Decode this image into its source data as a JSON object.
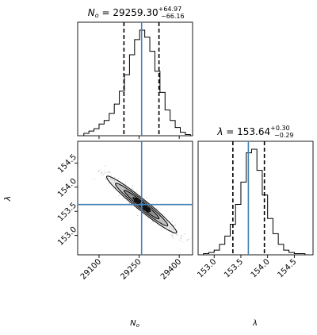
{
  "chart_data": [
    {
      "type": "histogram",
      "panel": "marginal-N0",
      "title": {
        "symbol": "N_o",
        "center": "29259.30",
        "plus": "+64.97",
        "minus": "−66.16"
      },
      "bins_x": [
        29043,
        29062,
        29081,
        29100,
        29119,
        29138,
        29157,
        29176,
        29195,
        29214,
        29233,
        29252,
        29271,
        29290,
        29309,
        29328,
        29347,
        29366,
        29385,
        29404,
        29423,
        29442
      ],
      "counts": [
        2,
        4,
        6,
        10,
        13,
        19,
        27,
        38,
        52,
        69,
        82,
        90,
        84,
        72,
        55,
        37,
        22,
        13,
        7,
        3,
        1
      ],
      "quantiles": [
        29193.14,
        29324.27
      ],
      "truth": 29259.3,
      "xlim": [
        29020,
        29450
      ],
      "line_color": "#000000",
      "truth_color": "#4682b4"
    },
    {
      "type": "histogram",
      "panel": "marginal-lambda",
      "title": {
        "symbol": "λ",
        "center": "153.64",
        "plus": "+0.30",
        "minus": "−0.29"
      },
      "bins_x": [
        152.8,
        152.9,
        153.0,
        153.1,
        153.2,
        153.3,
        153.4,
        153.5,
        153.6,
        153.7,
        153.8,
        153.9,
        154.0,
        154.1,
        154.2,
        154.3,
        154.4,
        154.5,
        154.6,
        154.7
      ],
      "counts": [
        1,
        2,
        4,
        9,
        16,
        26,
        43,
        62,
        87,
        90,
        72,
        51,
        31,
        18,
        9,
        4,
        2,
        1,
        1
      ],
      "quantiles": [
        153.35,
        153.94
      ],
      "truth": 153.64,
      "xlim": [
        152.7,
        154.85
      ],
      "xticks": [
        "153.0",
        "153.5",
        "154.0",
        "154.5"
      ],
      "xlabel": "λ",
      "line_color": "#000000",
      "truth_color": "#4682b4"
    },
    {
      "type": "scatter",
      "panel": "joint-N0-lambda",
      "xlim": [
        29020,
        29450
      ],
      "ylim": [
        152.6,
        154.95
      ],
      "xticks": [
        "29100",
        "29250",
        "29400"
      ],
      "yticks": [
        "154.5",
        "154.0",
        "153.5",
        "153.0"
      ],
      "xlabel": "N_o",
      "ylabel": "λ",
      "truth": {
        "x": 29259.3,
        "y": 153.64
      },
      "correlation": -0.97,
      "std": {
        "x": 65.5,
        "y": 0.295
      },
      "contour_levels_sigma": [
        0.5,
        1.0,
        1.5,
        2.0
      ],
      "line_color": "#000000",
      "truth_color": "#4682b4"
    }
  ]
}
